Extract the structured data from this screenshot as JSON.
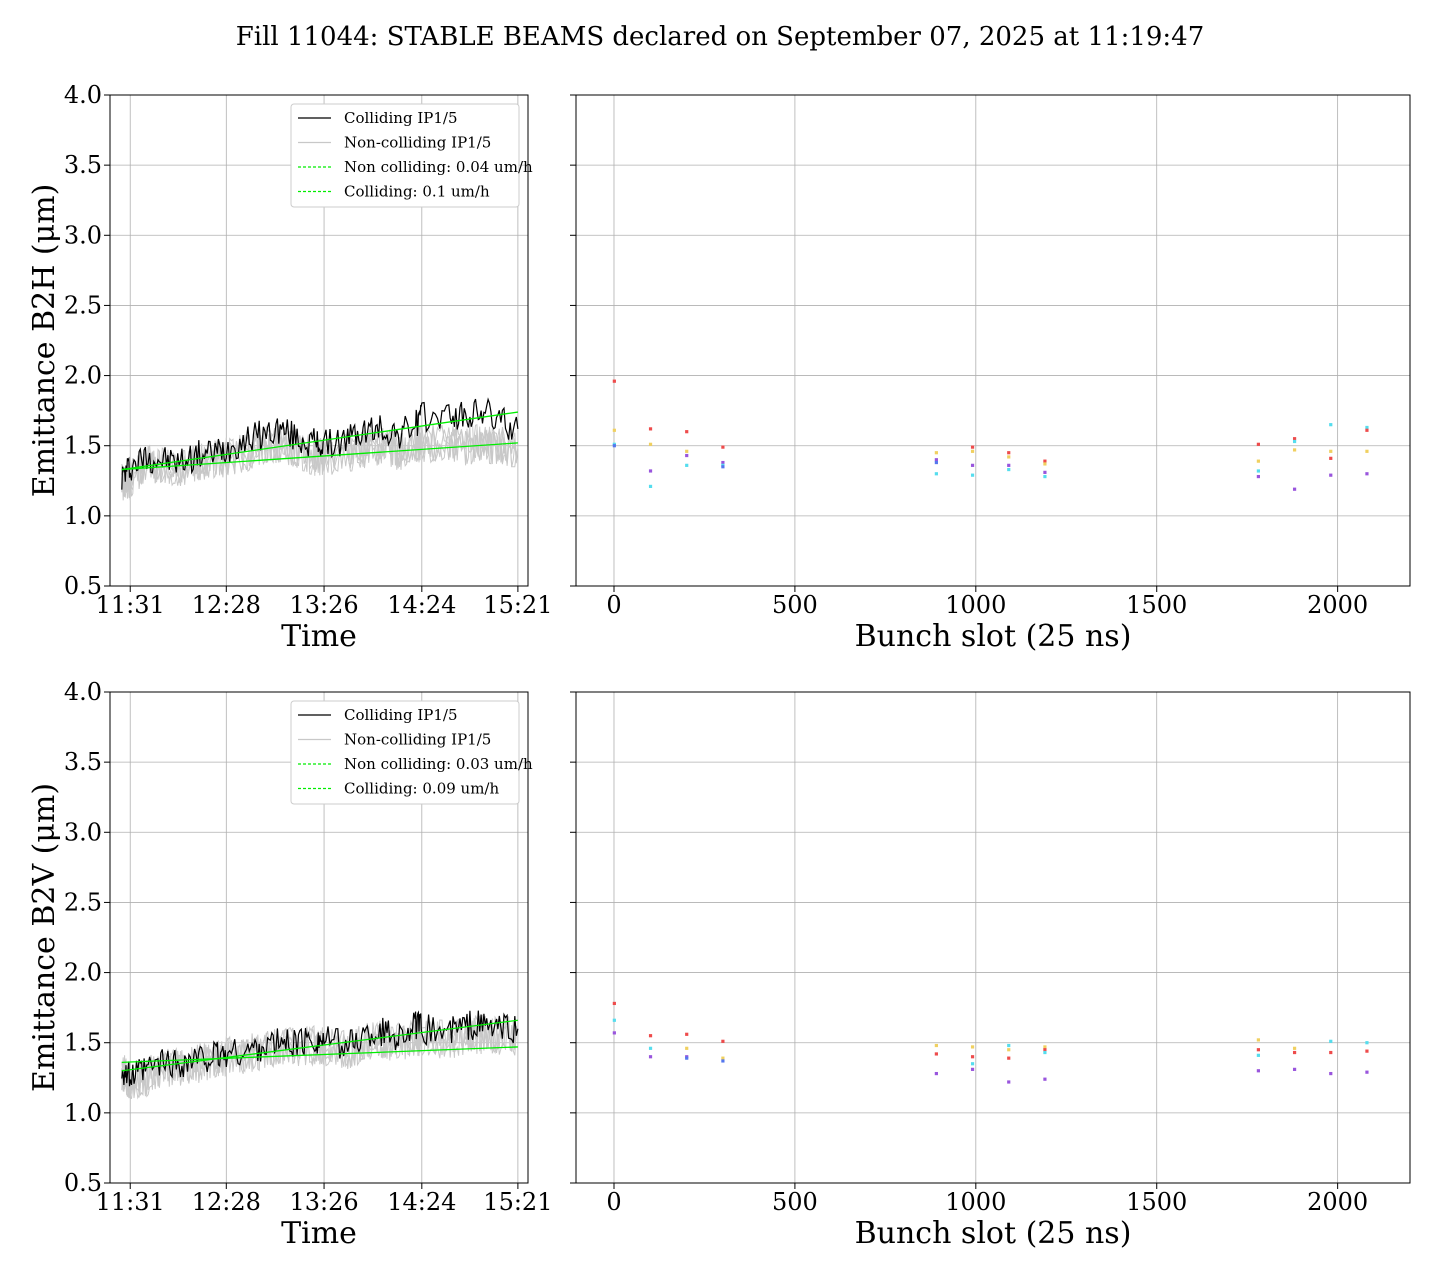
{
  "title": "Fill 11044: STABLE BEAMS declared on September 07, 2025 at 11:19:47",
  "colors": {
    "colliding": "#000000",
    "non_colliding": "#c8c8c8",
    "fit": "#00ee00",
    "grid": "#b0b0b0",
    "bunch_palette": [
      "#ee4b4b",
      "#f0d060",
      "#55ddee",
      "#9955dd",
      "#5577ee"
    ]
  },
  "chart_data": [
    {
      "type": "line",
      "xlabel": "Time",
      "ylabel": "Emittance B2H (μm)",
      "ylim": [
        0.5,
        4.0
      ],
      "yticks": [
        "0.5",
        "1.0",
        "1.5",
        "2.0",
        "2.5",
        "3.0",
        "3.5",
        "4.0"
      ],
      "xlim": [
        "11:19",
        "15:27"
      ],
      "xticks": [
        "11:31",
        "12:28",
        "13:26",
        "14:24",
        "15:21"
      ],
      "grid": true,
      "legend_position": "top-right",
      "legend": [
        "Colliding IP1/5",
        "Non-colliding IP1/5",
        "Non colliding: 0.04 um/h",
        "Colliding: 0.1 um/h"
      ],
      "series": [
        {
          "name": "Colliding IP1/5",
          "x": [
            "11:26",
            "11:31",
            "11:40",
            "11:50",
            "12:00",
            "12:10",
            "12:20",
            "12:28",
            "12:40",
            "12:50",
            "13:00",
            "13:10",
            "13:20",
            "13:26",
            "13:40",
            "13:50",
            "14:00",
            "14:10",
            "14:20",
            "14:24",
            "14:40",
            "14:50",
            "15:00",
            "15:10",
            "15:21"
          ],
          "y": [
            1.28,
            1.35,
            1.42,
            1.4,
            1.38,
            1.43,
            1.45,
            1.48,
            1.55,
            1.58,
            1.62,
            1.55,
            1.52,
            1.5,
            1.55,
            1.6,
            1.62,
            1.58,
            1.65,
            1.7,
            1.72,
            1.7,
            1.75,
            1.68,
            1.62
          ]
        },
        {
          "name": "Non-colliding IP1/5",
          "x": [
            "11:26",
            "11:31",
            "11:40",
            "11:50",
            "12:00",
            "12:10",
            "12:20",
            "12:28",
            "12:40",
            "12:50",
            "13:00",
            "13:10",
            "13:20",
            "13:26",
            "13:40",
            "13:50",
            "14:00",
            "14:10",
            "14:20",
            "14:24",
            "14:40",
            "14:50",
            "15:00",
            "15:10",
            "15:21"
          ],
          "y": [
            1.25,
            1.25,
            1.38,
            1.36,
            1.32,
            1.38,
            1.4,
            1.42,
            1.45,
            1.5,
            1.52,
            1.48,
            1.42,
            1.42,
            1.45,
            1.48,
            1.5,
            1.46,
            1.5,
            1.52,
            1.52,
            1.5,
            1.52,
            1.5,
            1.48
          ]
        },
        {
          "name": "Non colliding: 0.04 um/h",
          "x": [
            "11:26",
            "15:21"
          ],
          "y": [
            1.33,
            1.52
          ]
        },
        {
          "name": "Colliding: 0.1 um/h",
          "x": [
            "11:26",
            "15:21"
          ],
          "y": [
            1.33,
            1.74
          ]
        }
      ]
    },
    {
      "type": "scatter",
      "xlabel": "Bunch slot (25 ns)",
      "ylim": [
        0.5,
        4.0
      ],
      "xlim": [
        -105,
        2200
      ],
      "xticks": [
        "0",
        "500",
        "1000",
        "1500",
        "2000"
      ],
      "grid": true,
      "points": [
        {
          "x": 1,
          "y": 1.96,
          "c": 0
        },
        {
          "x": 1,
          "y": 1.61,
          "c": 1
        },
        {
          "x": 1,
          "y": 1.51,
          "c": 2
        },
        {
          "x": 1,
          "y": 1.5,
          "c": 4
        },
        {
          "x": 101,
          "y": 1.62,
          "c": 0
        },
        {
          "x": 101,
          "y": 1.51,
          "c": 1
        },
        {
          "x": 101,
          "y": 1.32,
          "c": 3
        },
        {
          "x": 101,
          "y": 1.21,
          "c": 2
        },
        {
          "x": 201,
          "y": 1.6,
          "c": 0
        },
        {
          "x": 201,
          "y": 1.46,
          "c": 1
        },
        {
          "x": 201,
          "y": 1.43,
          "c": 3
        },
        {
          "x": 201,
          "y": 1.36,
          "c": 2
        },
        {
          "x": 301,
          "y": 1.49,
          "c": 0
        },
        {
          "x": 301,
          "y": 1.38,
          "c": 3
        },
        {
          "x": 301,
          "y": 1.36,
          "c": 2
        },
        {
          "x": 301,
          "y": 1.35,
          "c": 4
        },
        {
          "x": 891,
          "y": 1.45,
          "c": 1
        },
        {
          "x": 891,
          "y": 1.4,
          "c": 3
        },
        {
          "x": 891,
          "y": 1.38,
          "c": 4
        },
        {
          "x": 891,
          "y": 1.3,
          "c": 2
        },
        {
          "x": 991,
          "y": 1.49,
          "c": 0
        },
        {
          "x": 991,
          "y": 1.46,
          "c": 1
        },
        {
          "x": 991,
          "y": 1.36,
          "c": 3
        },
        {
          "x": 991,
          "y": 1.29,
          "c": 2
        },
        {
          "x": 1091,
          "y": 1.45,
          "c": 0
        },
        {
          "x": 1091,
          "y": 1.42,
          "c": 1
        },
        {
          "x": 1091,
          "y": 1.36,
          "c": 3
        },
        {
          "x": 1091,
          "y": 1.33,
          "c": 2
        },
        {
          "x": 1191,
          "y": 1.39,
          "c": 0
        },
        {
          "x": 1191,
          "y": 1.37,
          "c": 1
        },
        {
          "x": 1191,
          "y": 1.31,
          "c": 3
        },
        {
          "x": 1191,
          "y": 1.28,
          "c": 2
        },
        {
          "x": 1781,
          "y": 1.51,
          "c": 0
        },
        {
          "x": 1781,
          "y": 1.39,
          "c": 1
        },
        {
          "x": 1781,
          "y": 1.32,
          "c": 2
        },
        {
          "x": 1781,
          "y": 1.28,
          "c": 3
        },
        {
          "x": 1881,
          "y": 1.55,
          "c": 0
        },
        {
          "x": 1881,
          "y": 1.53,
          "c": 2
        },
        {
          "x": 1881,
          "y": 1.47,
          "c": 1
        },
        {
          "x": 1881,
          "y": 1.19,
          "c": 3
        },
        {
          "x": 1981,
          "y": 1.65,
          "c": 2
        },
        {
          "x": 1981,
          "y": 1.46,
          "c": 1
        },
        {
          "x": 1981,
          "y": 1.41,
          "c": 0
        },
        {
          "x": 1981,
          "y": 1.29,
          "c": 3
        },
        {
          "x": 2081,
          "y": 1.63,
          "c": 2
        },
        {
          "x": 2081,
          "y": 1.61,
          "c": 0
        },
        {
          "x": 2081,
          "y": 1.46,
          "c": 1
        },
        {
          "x": 2081,
          "y": 1.3,
          "c": 3
        }
      ]
    },
    {
      "type": "line",
      "xlabel": "Time",
      "ylabel": "Emittance B2V (μm)",
      "ylim": [
        0.5,
        4.0
      ],
      "yticks": [
        "0.5",
        "1.0",
        "1.5",
        "2.0",
        "2.5",
        "3.0",
        "3.5",
        "4.0"
      ],
      "xlim": [
        "11:19",
        "15:27"
      ],
      "xticks": [
        "11:31",
        "12:28",
        "13:26",
        "14:24",
        "15:21"
      ],
      "grid": true,
      "legend_position": "top-right",
      "legend": [
        "Colliding IP1/5",
        "Non-colliding IP1/5",
        "Non colliding: 0.03 um/h",
        "Colliding: 0.09 um/h"
      ],
      "series": [
        {
          "name": "Colliding IP1/5",
          "x": [
            "11:26",
            "11:31",
            "11:40",
            "11:50",
            "12:00",
            "12:10",
            "12:20",
            "12:28",
            "12:40",
            "12:50",
            "13:00",
            "13:10",
            "13:20",
            "13:26",
            "13:40",
            "13:50",
            "14:00",
            "14:10",
            "14:20",
            "14:24",
            "14:40",
            "14:50",
            "15:00",
            "15:10",
            "15:21"
          ],
          "y": [
            1.32,
            1.25,
            1.3,
            1.36,
            1.35,
            1.38,
            1.4,
            1.42,
            1.44,
            1.48,
            1.5,
            1.5,
            1.52,
            1.52,
            1.48,
            1.55,
            1.58,
            1.55,
            1.62,
            1.6,
            1.58,
            1.62,
            1.62,
            1.6,
            1.6
          ]
        },
        {
          "name": "Non-colliding IP1/5",
          "x": [
            "11:26",
            "11:31",
            "11:40",
            "11:50",
            "12:00",
            "12:10",
            "12:20",
            "12:28",
            "12:40",
            "12:50",
            "13:00",
            "13:10",
            "13:20",
            "13:26",
            "13:40",
            "13:50",
            "14:00",
            "14:10",
            "14:20",
            "14:24",
            "14:40",
            "14:50",
            "15:00",
            "15:10",
            "15:21"
          ],
          "y": [
            1.3,
            1.22,
            1.25,
            1.32,
            1.33,
            1.35,
            1.37,
            1.4,
            1.42,
            1.45,
            1.47,
            1.47,
            1.48,
            1.48,
            1.44,
            1.5,
            1.52,
            1.5,
            1.55,
            1.54,
            1.52,
            1.55,
            1.56,
            1.55,
            1.55
          ]
        },
        {
          "name": "Non colliding: 0.03 um/h",
          "x": [
            "11:26",
            "15:21"
          ],
          "y": [
            1.36,
            1.47
          ]
        },
        {
          "name": "Colliding: 0.09 um/h",
          "x": [
            "11:26",
            "15:21"
          ],
          "y": [
            1.3,
            1.66
          ]
        }
      ]
    },
    {
      "type": "scatter",
      "xlabel": "Bunch slot (25 ns)",
      "ylim": [
        0.5,
        4.0
      ],
      "xlim": [
        -105,
        2200
      ],
      "xticks": [
        "0",
        "500",
        "1000",
        "1500",
        "2000"
      ],
      "grid": true,
      "points": [
        {
          "x": 1,
          "y": 1.78,
          "c": 0
        },
        {
          "x": 1,
          "y": 1.66,
          "c": 2
        },
        {
          "x": 1,
          "y": 1.57,
          "c": 3
        },
        {
          "x": 101,
          "y": 1.55,
          "c": 0
        },
        {
          "x": 101,
          "y": 1.46,
          "c": 2
        },
        {
          "x": 101,
          "y": 1.4,
          "c": 3
        },
        {
          "x": 201,
          "y": 1.56,
          "c": 0
        },
        {
          "x": 201,
          "y": 1.46,
          "c": 1
        },
        {
          "x": 201,
          "y": 1.4,
          "c": 3
        },
        {
          "x": 201,
          "y": 1.39,
          "c": 4
        },
        {
          "x": 301,
          "y": 1.51,
          "c": 0
        },
        {
          "x": 301,
          "y": 1.39,
          "c": 1
        },
        {
          "x": 301,
          "y": 1.37,
          "c": 4
        },
        {
          "x": 891,
          "y": 1.48,
          "c": 1
        },
        {
          "x": 891,
          "y": 1.42,
          "c": 0
        },
        {
          "x": 891,
          "y": 1.28,
          "c": 3
        },
        {
          "x": 991,
          "y": 1.47,
          "c": 1
        },
        {
          "x": 991,
          "y": 1.4,
          "c": 0
        },
        {
          "x": 991,
          "y": 1.35,
          "c": 2
        },
        {
          "x": 991,
          "y": 1.31,
          "c": 3
        },
        {
          "x": 1091,
          "y": 1.48,
          "c": 2
        },
        {
          "x": 1091,
          "y": 1.45,
          "c": 1
        },
        {
          "x": 1091,
          "y": 1.39,
          "c": 0
        },
        {
          "x": 1091,
          "y": 1.22,
          "c": 3
        },
        {
          "x": 1191,
          "y": 1.47,
          "c": 1
        },
        {
          "x": 1191,
          "y": 1.45,
          "c": 0
        },
        {
          "x": 1191,
          "y": 1.43,
          "c": 2
        },
        {
          "x": 1191,
          "y": 1.24,
          "c": 3
        },
        {
          "x": 1781,
          "y": 1.52,
          "c": 1
        },
        {
          "x": 1781,
          "y": 1.45,
          "c": 0
        },
        {
          "x": 1781,
          "y": 1.41,
          "c": 2
        },
        {
          "x": 1781,
          "y": 1.3,
          "c": 3
        },
        {
          "x": 1881,
          "y": 1.46,
          "c": 1
        },
        {
          "x": 1881,
          "y": 1.43,
          "c": 0
        },
        {
          "x": 1881,
          "y": 1.31,
          "c": 3
        },
        {
          "x": 1981,
          "y": 1.51,
          "c": 2
        },
        {
          "x": 1981,
          "y": 1.43,
          "c": 0
        },
        {
          "x": 1981,
          "y": 1.28,
          "c": 3
        },
        {
          "x": 2081,
          "y": 1.5,
          "c": 2
        },
        {
          "x": 2081,
          "y": 1.44,
          "c": 0
        },
        {
          "x": 2081,
          "y": 1.29,
          "c": 3
        }
      ]
    }
  ]
}
